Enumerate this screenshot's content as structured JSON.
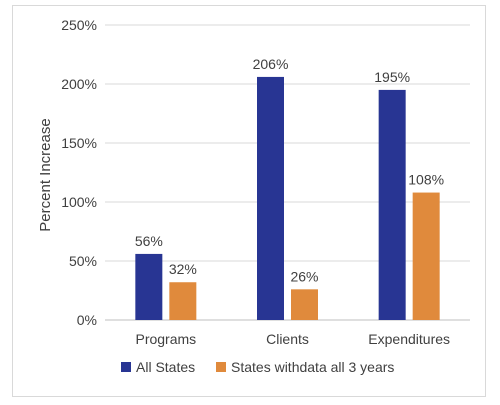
{
  "chart_data": {
    "type": "bar",
    "categories": [
      "Programs",
      "Clients",
      "Expenditures"
    ],
    "series": [
      {
        "name": "All States",
        "values": [
          56,
          206,
          195
        ],
        "labels": [
          "56%",
          "206%",
          "195%"
        ],
        "color": "#283593"
      },
      {
        "name": "States withdata all 3 years",
        "values": [
          32,
          26,
          108
        ],
        "labels": [
          "32%",
          "26%",
          "108%"
        ],
        "color": "#E08A3C"
      }
    ],
    "ylabel": "Percent Increase",
    "ylim": [
      0,
      250
    ],
    "yticks": [
      0,
      50,
      100,
      150,
      200,
      250
    ],
    "ytick_labels": [
      "0%",
      "50%",
      "100%",
      "150%",
      "200%",
      "250%"
    ],
    "grid": true,
    "legend_position": "bottom"
  }
}
